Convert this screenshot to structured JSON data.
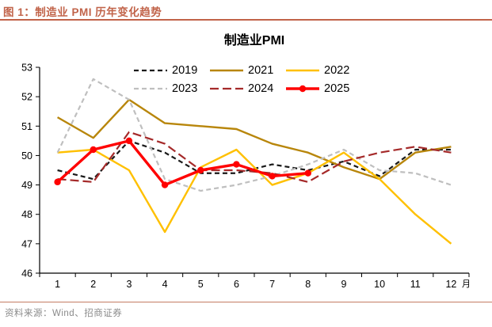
{
  "header": {
    "title": "图 1：制造业 PMI 历年变化趋势"
  },
  "footer": {
    "source": "资料来源：Wind、招商证券"
  },
  "theme": {
    "accent": "#C16349",
    "footer_text_color": "#8A8A8A",
    "axis_color": "#000000"
  },
  "chart_data": {
    "type": "line",
    "title": "制造业PMI",
    "x_categories": [
      "1",
      "2",
      "3",
      "4",
      "5",
      "6",
      "7",
      "8",
      "9",
      "10",
      "11",
      "12"
    ],
    "x_unit": "月",
    "ylim": [
      46,
      53
    ],
    "yticks": [
      46,
      47,
      48,
      49,
      50,
      51,
      52,
      53
    ],
    "grid": "off",
    "legend_position": "top-center",
    "series": [
      {
        "name": "2019",
        "color": "#1A1A1A",
        "style": "dashed",
        "dash": "6,4",
        "width": 2.2,
        "marker": false,
        "values": [
          49.5,
          49.2,
          50.5,
          50.1,
          49.4,
          49.4,
          49.7,
          49.5,
          49.8,
          49.3,
          50.2,
          50.2
        ]
      },
      {
        "name": "2021",
        "color": "#B8860B",
        "style": "solid",
        "dash": "",
        "width": 2.4,
        "marker": false,
        "values": [
          51.3,
          50.6,
          51.9,
          51.1,
          51.0,
          50.9,
          50.4,
          50.1,
          49.6,
          49.2,
          50.1,
          50.3
        ]
      },
      {
        "name": "2022",
        "color": "#FFC000",
        "style": "solid",
        "dash": "",
        "width": 2.4,
        "marker": false,
        "values": [
          50.1,
          50.2,
          49.5,
          47.4,
          49.6,
          50.2,
          49.0,
          49.4,
          50.1,
          49.2,
          48.0,
          47.0
        ]
      },
      {
        "name": "2023",
        "color": "#BFBFBF",
        "style": "dashed",
        "dash": "6,4",
        "width": 2.2,
        "marker": false,
        "values": [
          50.1,
          52.6,
          51.9,
          49.2,
          48.8,
          49.0,
          49.3,
          49.7,
          50.2,
          49.5,
          49.4,
          49.0
        ]
      },
      {
        "name": "2024",
        "color": "#A52A2A",
        "style": "dashed",
        "dash": "11,5",
        "width": 2.2,
        "marker": false,
        "values": [
          49.2,
          49.1,
          50.8,
          50.4,
          49.5,
          49.5,
          49.4,
          49.1,
          49.8,
          50.1,
          50.3,
          50.1
        ]
      },
      {
        "name": "2025",
        "color": "#FF0000",
        "style": "solid",
        "dash": "",
        "width": 3.4,
        "marker": true,
        "values": [
          49.1,
          50.2,
          50.5,
          49.0,
          49.5,
          49.7,
          49.3,
          49.4
        ]
      }
    ]
  }
}
